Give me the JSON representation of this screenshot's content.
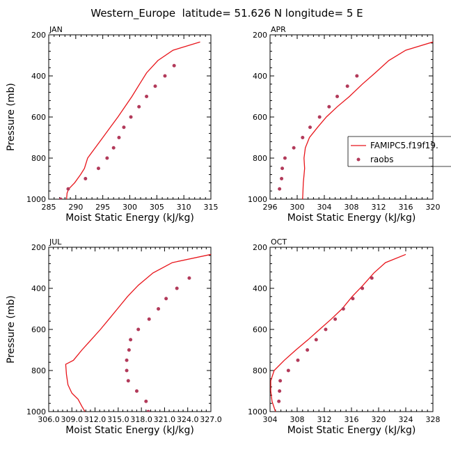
{
  "figure_title": "Western_Europe  latitude= 51.626 N longitude= 5 E",
  "legend": {
    "model_label": "FAMIPC5.f19f19.",
    "obs_label": "raobs"
  },
  "colors": {
    "model": "#e8141a",
    "obs": "#b23a5a",
    "axis": "#000000"
  },
  "chart_data": [
    {
      "type": "line",
      "panel": "JAN",
      "xlabel": "Moist Static Energy (kJ/kg)",
      "ylabel": "Pressure (mb)",
      "xlim": [
        285,
        315
      ],
      "ylim": [
        1000,
        200
      ],
      "xticks": [
        285,
        290,
        295,
        300,
        305,
        310,
        315
      ],
      "xtick_labels": [
        "285",
        "290",
        "295",
        "300",
        "305",
        "310",
        "315"
      ],
      "yticks": [
        200,
        400,
        600,
        800,
        1000
      ],
      "ytick_labels": [
        "200",
        "400",
        "600",
        "800",
        "1000"
      ],
      "series": [
        {
          "name": "FAMIPC5.f19f19.",
          "kind": "line",
          "x": [
            313.0,
            308.0,
            305.2,
            303.1,
            301.8,
            300.4,
            299.1,
            297.8,
            296.4,
            295.0,
            293.6,
            292.2,
            291.6,
            290.9,
            289.8,
            288.7,
            288.4,
            288.3
          ],
          "y": [
            235,
            275,
            325,
            385,
            440,
            500,
            550,
            600,
            650,
            700,
            750,
            800,
            850,
            880,
            920,
            950,
            970,
            1000
          ]
        },
        {
          "name": "raobs",
          "kind": "scatter",
          "x": [
            308.2,
            306.5,
            304.7,
            303.1,
            301.7,
            300.2,
            298.9,
            298.0,
            297.0,
            295.8,
            294.2,
            291.8,
            288.6,
            287.2
          ],
          "y": [
            350,
            400,
            450,
            500,
            550,
            600,
            650,
            700,
            750,
            800,
            850,
            900,
            950,
            1000
          ]
        }
      ]
    },
    {
      "type": "line",
      "panel": "APR",
      "xlabel": "Moist Static Energy (kJ/kg)",
      "ylabel": "",
      "xlim": [
        296,
        320
      ],
      "ylim": [
        1000,
        200
      ],
      "xticks": [
        296,
        300,
        304,
        308,
        312,
        316,
        320
      ],
      "xtick_labels": [
        "296",
        "300",
        "304",
        "308",
        "312",
        "316",
        "320"
      ],
      "yticks": [
        200,
        400,
        600,
        800,
        1000
      ],
      "ytick_labels": [
        "200",
        "400",
        "600",
        "800",
        "1000"
      ],
      "series": [
        {
          "name": "FAMIPC5.f19f19.",
          "kind": "line",
          "x": [
            320.0,
            316.0,
            313.5,
            311.5,
            309.6,
            307.7,
            305.9,
            304.3,
            303.0,
            301.8,
            301.2,
            301.0,
            301.1,
            300.9,
            300.8
          ],
          "y": [
            235,
            275,
            325,
            385,
            440,
            500,
            550,
            600,
            650,
            700,
            750,
            800,
            850,
            920,
            1000
          ]
        },
        {
          "name": "raobs",
          "kind": "scatter",
          "x": [
            308.8,
            307.4,
            305.9,
            304.7,
            303.3,
            301.9,
            300.8,
            299.5,
            298.2,
            297.8,
            297.7,
            297.4
          ],
          "y": [
            400,
            450,
            500,
            550,
            600,
            650,
            700,
            750,
            800,
            850,
            900,
            950
          ]
        }
      ]
    },
    {
      "type": "line",
      "panel": "JUL",
      "xlabel": "Moist Static Energy (kJ/kg)",
      "ylabel": "Pressure (mb)",
      "xlim": [
        306.0,
        327.0
      ],
      "ylim": [
        1000,
        200
      ],
      "xticks": [
        306.0,
        309.0,
        312.0,
        315.0,
        318.0,
        321.0,
        324.0,
        327.0
      ],
      "xtick_labels": [
        "306.0",
        "309.0",
        "312.0",
        "315.0",
        "318.0",
        "321.0",
        "324.0",
        "327.0"
      ],
      "yticks": [
        200,
        400,
        600,
        800,
        1000
      ],
      "ytick_labels": [
        "200",
        "400",
        "600",
        "800",
        "1000"
      ],
      "series": [
        {
          "name": "FAMIPC5.f19f19.",
          "kind": "line",
          "x": [
            327.0,
            322.0,
            319.5,
            317.6,
            316.2,
            314.9,
            313.8,
            312.7,
            311.5,
            310.3,
            309.2,
            308.2,
            308.3,
            308.5,
            309.0,
            309.8,
            310.3,
            310.7
          ],
          "y": [
            235,
            275,
            325,
            385,
            440,
            500,
            550,
            600,
            650,
            700,
            750,
            770,
            820,
            870,
            910,
            940,
            975,
            1000
          ]
        },
        {
          "name": "raobs",
          "kind": "scatter",
          "x": [
            324.2,
            322.6,
            321.2,
            320.2,
            319.0,
            317.6,
            316.6,
            316.4,
            316.1,
            316.1,
            316.3,
            317.4,
            318.6,
            318.9
          ],
          "y": [
            350,
            400,
            450,
            500,
            550,
            600,
            650,
            700,
            750,
            800,
            850,
            900,
            950,
            1000
          ]
        }
      ]
    },
    {
      "type": "line",
      "panel": "OCT",
      "xlabel": "Moist Static Energy (kJ/kg)",
      "ylabel": "",
      "xlim": [
        304,
        328
      ],
      "ylim": [
        1000,
        200
      ],
      "xticks": [
        304,
        308,
        312,
        316,
        320,
        324,
        328
      ],
      "xtick_labels": [
        "304",
        "308",
        "312",
        "316",
        "320",
        "324",
        "328"
      ],
      "yticks": [
        200,
        400,
        600,
        800,
        1000
      ],
      "ytick_labels": [
        "200",
        "400",
        "600",
        "800",
        "1000"
      ],
      "series": [
        {
          "name": "FAMIPC5.f19f19.",
          "kind": "line",
          "x": [
            324.0,
            321.0,
            319.3,
            317.7,
            316.1,
            314.6,
            313.0,
            311.3,
            309.6,
            307.8,
            306.1,
            304.6,
            304.1,
            304.1,
            304.3,
            304.8
          ],
          "y": [
            235,
            275,
            325,
            385,
            440,
            500,
            550,
            600,
            650,
            700,
            750,
            800,
            850,
            900,
            950,
            1000
          ]
        },
        {
          "name": "raobs",
          "kind": "scatter",
          "x": [
            319.0,
            317.6,
            316.2,
            314.8,
            313.6,
            312.2,
            310.8,
            309.5,
            308.1,
            306.7,
            305.5,
            305.4,
            305.3
          ],
          "y": [
            350,
            400,
            450,
            500,
            550,
            600,
            650,
            700,
            750,
            800,
            850,
            900,
            950
          ]
        }
      ]
    }
  ]
}
